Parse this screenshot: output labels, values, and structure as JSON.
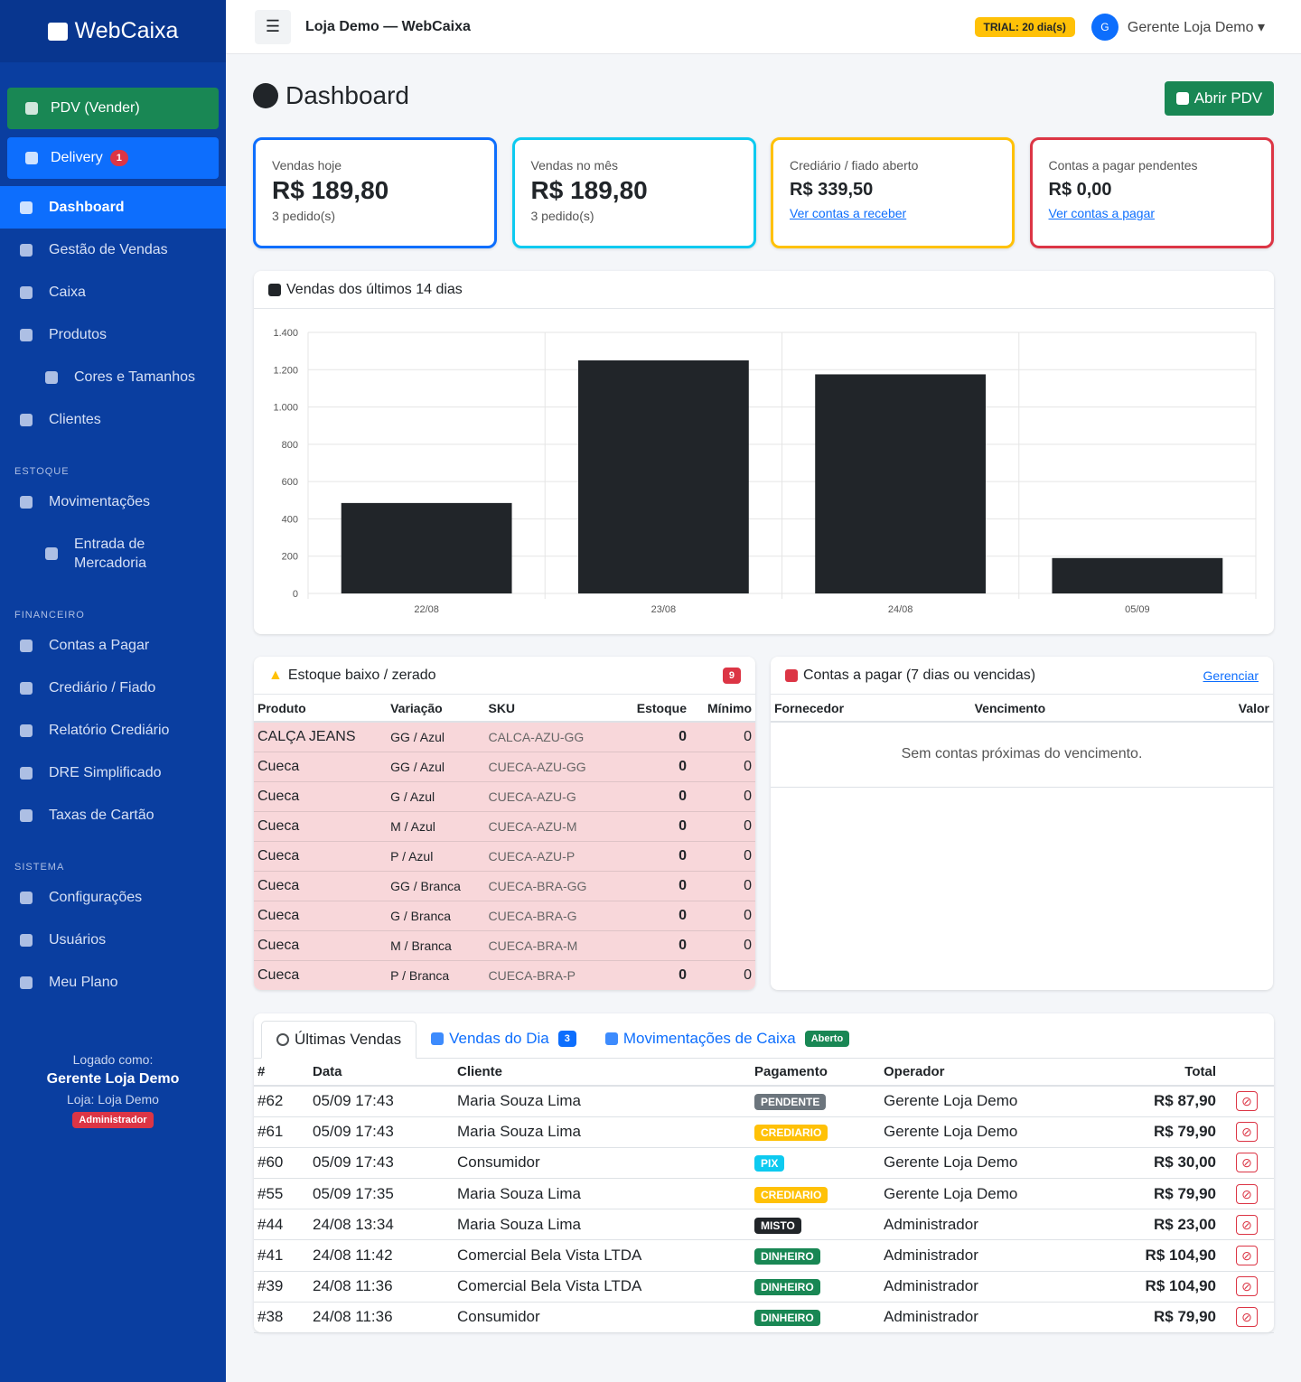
{
  "sidebar": {
    "brand": "WebCaixa",
    "pdv": "PDV (Vender)",
    "delivery": {
      "label": "Delivery",
      "badge": 1
    },
    "groups": [
      {
        "items": [
          {
            "label": "Dashboard",
            "active": true
          },
          {
            "label": "Gestão de Vendas"
          },
          {
            "label": "Caixa"
          },
          {
            "label": "Produtos"
          },
          {
            "label": "Cores e Tamanhos",
            "sub": true
          },
          {
            "label": "Clientes"
          }
        ]
      },
      {
        "heading": "ESTOQUE",
        "items": [
          {
            "label": "Movimentações"
          },
          {
            "label": "Entrada de Mercadoria",
            "sub": true
          }
        ]
      },
      {
        "heading": "FINANCEIRO",
        "items": [
          {
            "label": "Contas a Pagar"
          },
          {
            "label": "Crediário / Fiado"
          },
          {
            "label": "Relatório Crediário"
          },
          {
            "label": "DRE Simplificado"
          },
          {
            "label": "Taxas de Cartão"
          }
        ]
      },
      {
        "heading": "SISTEMA",
        "items": [
          {
            "label": "Configurações"
          },
          {
            "label": "Usuários"
          },
          {
            "label": "Meu Plano"
          }
        ]
      }
    ],
    "footer": {
      "caption": "Logado como:",
      "user": "Gerente Loja Demo",
      "store": "Loja: Loja Demo",
      "role": "Administrador"
    }
  },
  "topbar": {
    "title": "Loja Demo — WebCaixa",
    "trial": "TRIAL: 20 dia(s)",
    "avatar": "G",
    "user": "Gerente Loja Demo"
  },
  "header": {
    "title": "Dashboard",
    "button": "Abrir PDV"
  },
  "cards": [
    {
      "label": "Vendas hoje",
      "value": "R$ 189,80",
      "note": "3 pedido(s)",
      "color": "#0d6efd"
    },
    {
      "label": "Vendas no mês",
      "value": "R$ 189,80",
      "note": "3 pedido(s)",
      "color": "#0dcaf0"
    },
    {
      "label": "Crediário / fiado aberto",
      "value": "R$ 339,50",
      "link": "Ver contas a receber",
      "color": "#ffc107"
    },
    {
      "label": "Contas a pagar pendentes",
      "value": "R$ 0,00",
      "link": "Ver contas a pagar",
      "color": "#dc3545"
    }
  ],
  "chart_data": {
    "type": "bar",
    "title": "Vendas dos últimos 14 dias",
    "categories": [
      "22/08",
      "23/08",
      "24/08",
      "05/09"
    ],
    "values": [
      485,
      1250,
      1175,
      189.8
    ],
    "color": "#212529",
    "ylim": [
      0,
      1400
    ],
    "yticks": [
      0,
      200,
      400,
      600,
      800,
      {
        "value": 1000,
        "label": "1.000"
      },
      {
        "value": 1200,
        "label": "1.200"
      },
      {
        "value": 1400,
        "label": "1.400"
      }
    ],
    "grid": true
  },
  "stock": {
    "title": "Estoque baixo / zerado",
    "badge": 9,
    "headers": [
      "Produto",
      "Variação",
      "SKU",
      "Estoque",
      "Mínimo"
    ],
    "rows": [
      [
        "CALÇA JEANS",
        "GG / Azul",
        "CALCA-AZU-GG",
        0,
        0
      ],
      [
        "Cueca",
        "GG / Azul",
        "CUECA-AZU-GG",
        0,
        0
      ],
      [
        "Cueca",
        "G / Azul",
        "CUECA-AZU-G",
        0,
        0
      ],
      [
        "Cueca",
        "M / Azul",
        "CUECA-AZU-M",
        0,
        0
      ],
      [
        "Cueca",
        "P / Azul",
        "CUECA-AZU-P",
        0,
        0
      ],
      [
        "Cueca",
        "GG / Branca",
        "CUECA-BRA-GG",
        0,
        0
      ],
      [
        "Cueca",
        "G / Branca",
        "CUECA-BRA-G",
        0,
        0
      ],
      [
        "Cueca",
        "M / Branca",
        "CUECA-BRA-M",
        0,
        0
      ],
      [
        "Cueca",
        "P / Branca",
        "CUECA-BRA-P",
        0,
        0
      ]
    ]
  },
  "payables": {
    "title": "Contas a pagar (7 dias ou vencidas)",
    "link": "Gerenciar",
    "headers": [
      "Fornecedor",
      "Vencimento",
      "Valor"
    ],
    "empty": "Sem contas próximas do vencimento."
  },
  "tabs": [
    {
      "label": "Últimas Vendas",
      "active": true
    },
    {
      "label": "Vendas do Dia",
      "badge": 3,
      "badge_color": "#0d6efd"
    },
    {
      "label": "Movimentações de Caixa",
      "badge": "Aberto",
      "badge_color": "#198754"
    }
  ],
  "sales": {
    "headers": [
      "#",
      "Data",
      "Cliente",
      "Pagamento",
      "Operador",
      "Total"
    ],
    "rows": [
      {
        "id": "#62",
        "date": "05/09 17:43",
        "client": "Maria Souza Lima",
        "payment": "PENDENTE",
        "pay_color": "#6c757d",
        "operator": "Gerente Loja Demo",
        "total": "R$ 87,90"
      },
      {
        "id": "#61",
        "date": "05/09 17:43",
        "client": "Maria Souza Lima",
        "payment": "CREDIARIO",
        "pay_color": "#ffc107",
        "operator": "Gerente Loja Demo",
        "total": "R$ 79,90"
      },
      {
        "id": "#60",
        "date": "05/09 17:43",
        "client": "Consumidor",
        "payment": "PIX",
        "pay_color": "#0dcaf0",
        "operator": "Gerente Loja Demo",
        "total": "R$ 30,00"
      },
      {
        "id": "#55",
        "date": "05/09 17:35",
        "client": "Maria Souza Lima",
        "payment": "CREDIARIO",
        "pay_color": "#ffc107",
        "operator": "Gerente Loja Demo",
        "total": "R$ 79,90"
      },
      {
        "id": "#44",
        "date": "24/08 13:34",
        "client": "Maria Souza Lima",
        "payment": "MISTO",
        "pay_color": "#212529",
        "operator": "Administrador",
        "total": "R$ 23,00"
      },
      {
        "id": "#41",
        "date": "24/08 11:42",
        "client": "Comercial Bela Vista LTDA",
        "payment": "DINHEIRO",
        "pay_color": "#198754",
        "operator": "Administrador",
        "total": "R$ 104,90"
      },
      {
        "id": "#39",
        "date": "24/08 11:36",
        "client": "Comercial Bela Vista LTDA",
        "payment": "DINHEIRO",
        "pay_color": "#198754",
        "operator": "Administrador",
        "total": "R$ 104,90"
      },
      {
        "id": "#38",
        "date": "24/08 11:36",
        "client": "Consumidor",
        "payment": "DINHEIRO",
        "pay_color": "#198754",
        "operator": "Administrador",
        "total": "R$ 79,90"
      }
    ]
  }
}
